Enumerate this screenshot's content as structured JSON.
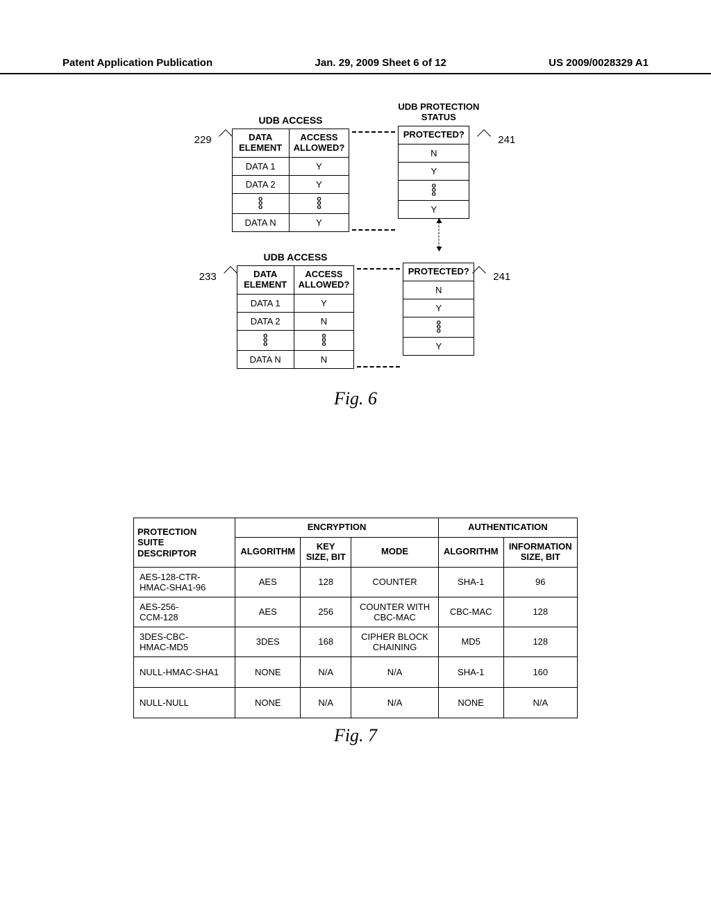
{
  "header": {
    "left": "Patent Application Publication",
    "center": "Jan. 29, 2009  Sheet 6 of 12",
    "right": "US 2009/0028329 A1"
  },
  "fig6": {
    "caption": "Fig. 6",
    "udb_access_title": "UDB ACCESS",
    "udb_protection_title_l1": "UDB PROTECTION",
    "udb_protection_title_l2": "STATUS",
    "col_data_element": "DATA\nELEMENT",
    "col_access_allowed": "ACCESS\nALLOWED?",
    "col_protected": "PROTECTED?",
    "ref_229": "229",
    "ref_233": "233",
    "ref_241": "241",
    "block1": {
      "access": [
        {
          "el": "DATA 1",
          "allowed": "Y"
        },
        {
          "el": "DATA 2",
          "allowed": "Y"
        },
        {
          "el": "DATA N",
          "allowed": "Y"
        }
      ],
      "protected": [
        "N",
        "Y",
        "Y"
      ]
    },
    "block2": {
      "access": [
        {
          "el": "DATA 1",
          "allowed": "Y"
        },
        {
          "el": "DATA 2",
          "allowed": "N"
        },
        {
          "el": "DATA N",
          "allowed": "N"
        }
      ],
      "protected": [
        "N",
        "Y",
        "Y"
      ]
    }
  },
  "fig7": {
    "caption": "Fig. 7",
    "head_descriptor_l1": "PROTECTION",
    "head_descriptor_l2": "SUITE",
    "head_descriptor_l3": "DESCRIPTOR",
    "head_encryption": "ENCRYPTION",
    "head_authentication": "AUTHENTICATION",
    "sub_algorithm": "ALGORITHM",
    "sub_key": "KEY\nSIZE, BIT",
    "sub_mode": "MODE",
    "sub_info": "INFORMATION\nSIZE, BIT",
    "rows": [
      {
        "d": "AES-128-CTR-\nHMAC-SHA1-96",
        "alg": "AES",
        "key": "128",
        "mode": "COUNTER",
        "aalg": "SHA-1",
        "info": "96"
      },
      {
        "d": "AES-256-\nCCM-128",
        "alg": "AES",
        "key": "256",
        "mode": "COUNTER WITH\nCBC-MAC",
        "aalg": "CBC-MAC",
        "info": "128"
      },
      {
        "d": "3DES-CBC-\nHMAC-MD5",
        "alg": "3DES",
        "key": "168",
        "mode": "CIPHER BLOCK\nCHAINING",
        "aalg": "MD5",
        "info": "128"
      },
      {
        "d": "NULL-HMAC-SHA1",
        "alg": "NONE",
        "key": "N/A",
        "mode": "N/A",
        "aalg": "SHA-1",
        "info": "160"
      },
      {
        "d": "NULL-NULL",
        "alg": "NONE",
        "key": "N/A",
        "mode": "N/A",
        "aalg": "NONE",
        "info": "N/A"
      }
    ]
  }
}
